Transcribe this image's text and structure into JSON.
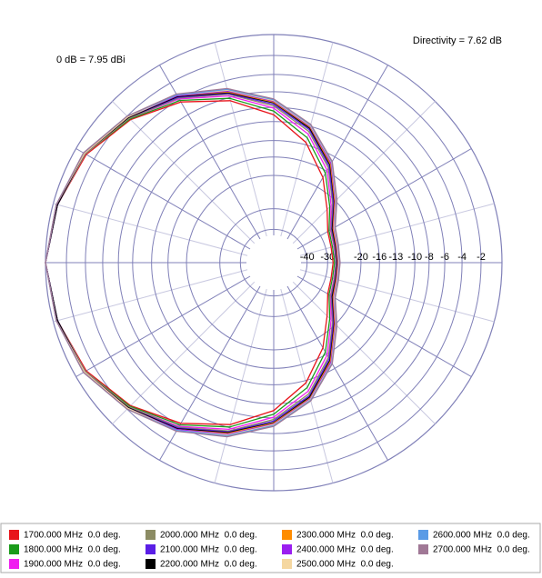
{
  "chart_data": {
    "type": "polar",
    "annotations": [
      "Directivity = 7.62 dB",
      "0 dB = 7.95 dBi"
    ],
    "theta": [
      0,
      15,
      30,
      45,
      60,
      75,
      90,
      105,
      120,
      135,
      150,
      165,
      180,
      195,
      210,
      225,
      240,
      255,
      270,
      285,
      300,
      315,
      330,
      345
    ],
    "rticks": [
      -40,
      -30,
      -20,
      -16,
      -13,
      -10,
      -8,
      -6,
      -4,
      -2
    ],
    "grid": true,
    "series": [
      {
        "name": "1700.000 MHz  0.0 deg.",
        "color": "#e8141b",
        "values": [
          -28,
          -28,
          -27,
          -23,
          -17.5,
          -12.6,
          -9,
          -6.4,
          -4.3,
          -2.5,
          -1.1,
          -0.4,
          0,
          -0.4,
          -1.1,
          -2.5,
          -4.3,
          -6.4,
          -9,
          -12.6,
          -17.5,
          -23,
          -27,
          -28
        ]
      },
      {
        "name": "1800.000 MHz  0.0 deg.",
        "color": "#1a9b1a",
        "values": [
          -27.5,
          -27.5,
          -26.5,
          -22,
          -16.5,
          -11.8,
          -8.5,
          -6.1,
          -4.1,
          -2.4,
          -1,
          -0.4,
          0,
          -0.4,
          -1,
          -2.4,
          -4.1,
          -6.1,
          -8.5,
          -11.8,
          -16.5,
          -22,
          -26.5,
          -27.5
        ]
      },
      {
        "name": "1900.000 MHz  0.0 deg.",
        "color": "#f01ef0",
        "values": [
          -27,
          -27,
          -26,
          -21.5,
          -15.8,
          -11.2,
          -8.1,
          -5.8,
          -3.9,
          -2.3,
          -1,
          -0.4,
          0,
          -0.4,
          -1,
          -2.3,
          -3.9,
          -5.8,
          -8.1,
          -11.2,
          -15.8,
          -21.5,
          -26,
          -27
        ]
      },
      {
        "name": "2000.000 MHz  0.0 deg.",
        "color": "#8c8c64",
        "values": [
          -27,
          -26.8,
          -25.8,
          -21,
          -15.3,
          -10.8,
          -7.8,
          -5.6,
          -3.8,
          -2.3,
          -1,
          -0.4,
          0,
          -0.4,
          -1,
          -2.3,
          -3.8,
          -5.6,
          -7.8,
          -10.8,
          -15.3,
          -21,
          -25.8,
          -26.8
        ]
      },
      {
        "name": "2100.000 MHz  0.0 deg.",
        "color": "#5a1ee6",
        "values": [
          -26.8,
          -26.6,
          -25.5,
          -20.7,
          -15,
          -10.5,
          -7.6,
          -5.5,
          -3.7,
          -2.2,
          -0.9,
          -0.4,
          0,
          -0.4,
          -0.9,
          -2.2,
          -3.7,
          -5.5,
          -7.6,
          -10.5,
          -15,
          -20.7,
          -25.5,
          -26.6
        ]
      },
      {
        "name": "2200.000 MHz  0.0 deg.",
        "color": "#000000",
        "values": [
          -26.6,
          -26.4,
          -25.3,
          -20.4,
          -14.7,
          -10.3,
          -7.4,
          -5.4,
          -3.6,
          -2.2,
          -0.9,
          -0.4,
          0,
          -0.4,
          -0.9,
          -2.2,
          -3.6,
          -5.4,
          -7.4,
          -10.3,
          -14.7,
          -20.4,
          -25.3,
          -26.4
        ]
      },
      {
        "name": "2300.000 MHz  0.0 deg.",
        "color": "#ff8c00",
        "values": [
          -26.4,
          -26.2,
          -25,
          -20.2,
          -14.5,
          -10.1,
          -7.3,
          -5.3,
          -3.5,
          -2.1,
          -0.9,
          -0.3,
          0,
          -0.3,
          -0.9,
          -2.1,
          -3.5,
          -5.3,
          -7.3,
          -10.1,
          -14.5,
          -20.2,
          -25,
          -26.2
        ]
      },
      {
        "name": "2400.000 MHz  0.0 deg.",
        "color": "#9b1ef0",
        "values": [
          -26.2,
          -26,
          -24.8,
          -20,
          -14.3,
          -10,
          -7.2,
          -5.2,
          -3.5,
          -2.1,
          -0.9,
          -0.3,
          0,
          -0.3,
          -0.9,
          -2.1,
          -3.5,
          -5.2,
          -7.2,
          -10,
          -14.3,
          -20,
          -24.8,
          -26
        ]
      },
      {
        "name": "2500.000 MHz  0.0 deg.",
        "color": "#f5d7a0",
        "values": [
          -26,
          -25.8,
          -24.6,
          -19.8,
          -14.1,
          -9.9,
          -7.1,
          -5.1,
          -3.4,
          -2.1,
          -0.9,
          -0.3,
          0,
          -0.3,
          -0.9,
          -2.1,
          -3.4,
          -5.1,
          -7.1,
          -9.9,
          -14.1,
          -19.8,
          -24.6,
          -25.8
        ]
      },
      {
        "name": "2600.000 MHz  0.0 deg.",
        "color": "#5a9be6",
        "values": [
          -25.8,
          -25.6,
          -24.4,
          -19.6,
          -14,
          -9.8,
          -7,
          -5,
          -3.4,
          -2,
          -0.8,
          -0.3,
          0,
          -0.3,
          -0.8,
          -2,
          -3.4,
          -5,
          -7,
          -9.8,
          -14,
          -19.6,
          -24.4,
          -25.6
        ]
      },
      {
        "name": "2700.000 MHz  0.0 deg.",
        "color": "#a07896",
        "values": [
          -25.7,
          -25.5,
          -24.3,
          -19.5,
          -13.9,
          -9.7,
          -6.9,
          -4.9,
          -3.3,
          -2,
          -0.8,
          -0.3,
          0,
          -0.3,
          -0.8,
          -2,
          -3.3,
          -4.9,
          -6.9,
          -9.7,
          -13.9,
          -19.5,
          -24.3,
          -25.5
        ]
      }
    ]
  }
}
